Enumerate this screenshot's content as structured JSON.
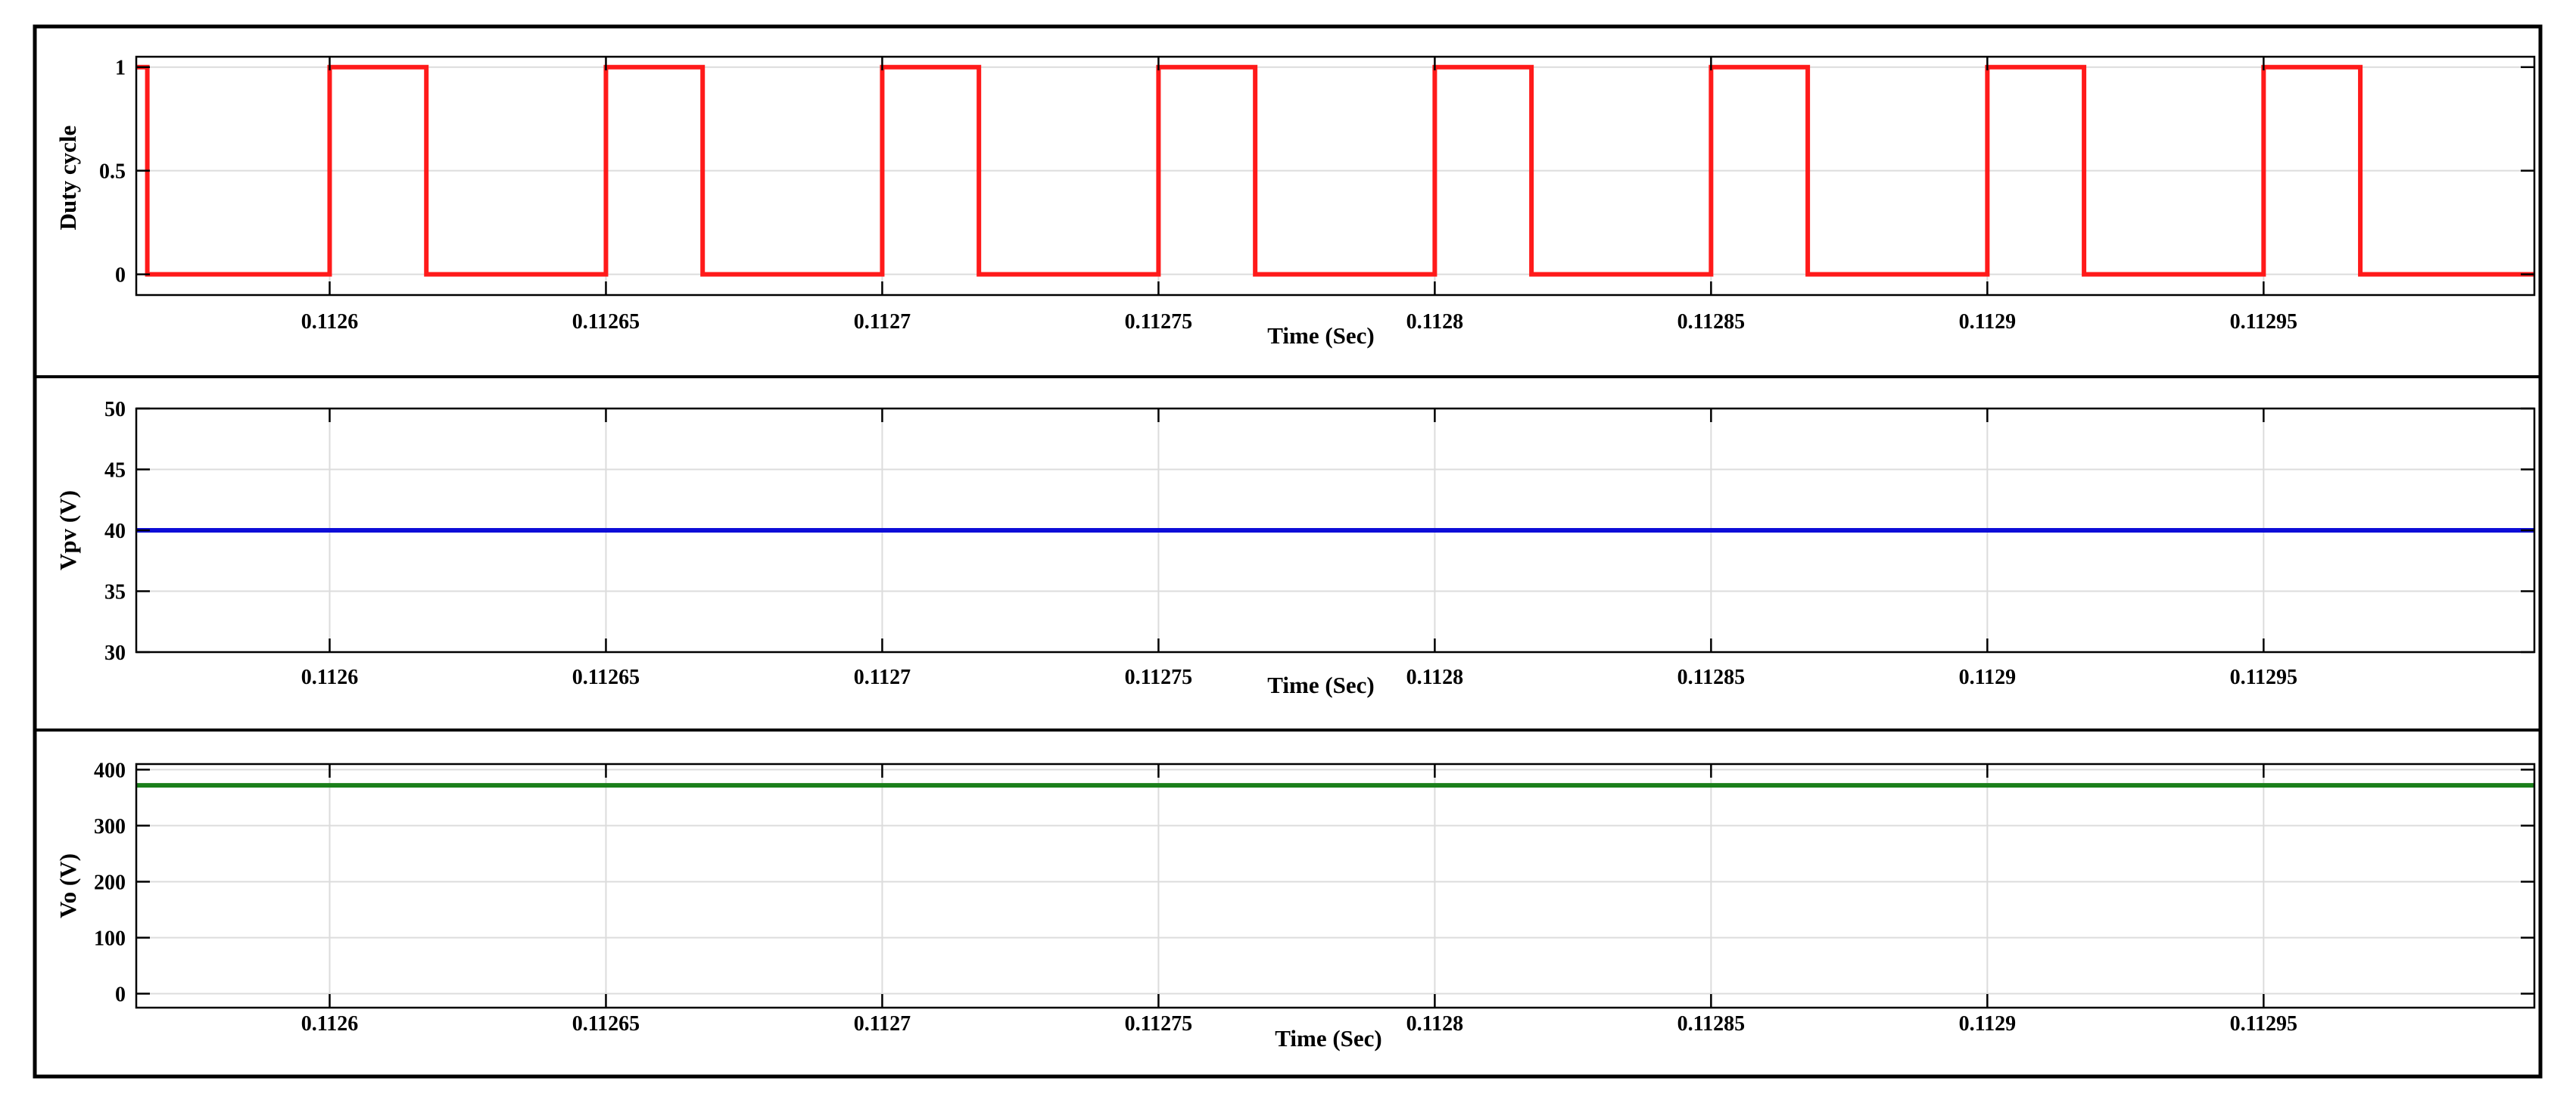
{
  "chart_data": [
    {
      "type": "line",
      "ylabel": "Duty cycle",
      "xlabel": "Time (Sec)",
      "xlim": [
        0.112565,
        0.112999
      ],
      "ylim": [
        -0.1,
        1.05
      ],
      "xticks": [
        0.1126,
        0.11265,
        0.1127,
        0.11275,
        0.1128,
        0.11285,
        0.1129,
        0.11295
      ],
      "xtick_labels": [
        "0.1126",
        "0.11265",
        "0.1127",
        "0.11275",
        "0.1128",
        "0.11285",
        "0.1129",
        "0.11295"
      ],
      "yticks": [
        0,
        0.5,
        1
      ],
      "ytick_labels": [
        "0",
        "0.5",
        "1"
      ],
      "grid": true,
      "series": [
        {
          "color": "#ff1a1a",
          "x": [
            0.112565,
            0.112567,
            0.112567,
            0.1126,
            0.1126,
            0.1126175,
            0.1126175,
            0.11265,
            0.11265,
            0.1126675,
            0.1126675,
            0.1127,
            0.1127,
            0.1127175,
            0.1127175,
            0.11275,
            0.11275,
            0.1127675,
            0.1127675,
            0.1128,
            0.1128,
            0.1128175,
            0.1128175,
            0.11285,
            0.11285,
            0.1128675,
            0.1128675,
            0.1129,
            0.1129,
            0.1129175,
            0.1129175,
            0.11295,
            0.11295,
            0.1129675,
            0.1129675,
            0.112999
          ],
          "y": [
            1,
            1,
            0,
            0,
            1,
            1,
            0,
            0,
            1,
            1,
            0,
            0,
            1,
            1,
            0,
            0,
            1,
            1,
            0,
            0,
            1,
            1,
            0,
            0,
            1,
            1,
            0,
            0,
            1,
            1,
            0,
            0,
            1,
            1,
            0,
            0
          ]
        }
      ]
    },
    {
      "type": "line",
      "ylabel": "Vpv (V)",
      "xlabel": "Time (Sec)",
      "xlim": [
        0.112565,
        0.112999
      ],
      "ylim": [
        30,
        50
      ],
      "xticks": [
        0.1126,
        0.11265,
        0.1127,
        0.11275,
        0.1128,
        0.11285,
        0.1129,
        0.11295
      ],
      "xtick_labels": [
        "0.1126",
        "0.11265",
        "0.1127",
        "0.11275",
        "0.1128",
        "0.11285",
        "0.1129",
        "0.11295"
      ],
      "yticks": [
        30,
        35,
        40,
        45,
        50
      ],
      "ytick_labels": [
        "30",
        "35",
        "40",
        "45",
        "50"
      ],
      "grid": true,
      "series": [
        {
          "color": "#0d0dd8",
          "x": [
            0.112565,
            0.112999
          ],
          "y": [
            40,
            40
          ]
        }
      ]
    },
    {
      "type": "line",
      "ylabel": "Vo (V)",
      "xlabel": "Time (Sec)",
      "xlim": [
        0.112565,
        0.112999
      ],
      "ylim": [
        -25,
        410
      ],
      "xticks": [
        0.1126,
        0.11265,
        0.1127,
        0.11275,
        0.1128,
        0.11285,
        0.1129,
        0.11295
      ],
      "xtick_labels": [
        "0.1126",
        "0.11265",
        "0.1127",
        "0.11275",
        "0.1128",
        "0.11285",
        "0.1129",
        "0.11295"
      ],
      "yticks": [
        0,
        100,
        200,
        300,
        400
      ],
      "ytick_labels": [
        "0",
        "100",
        "200",
        "300",
        "400"
      ],
      "grid": true,
      "series": [
        {
          "color": "#1a7f1a",
          "x": [
            0.112565,
            0.112999
          ],
          "y": [
            372,
            372
          ]
        }
      ]
    }
  ]
}
